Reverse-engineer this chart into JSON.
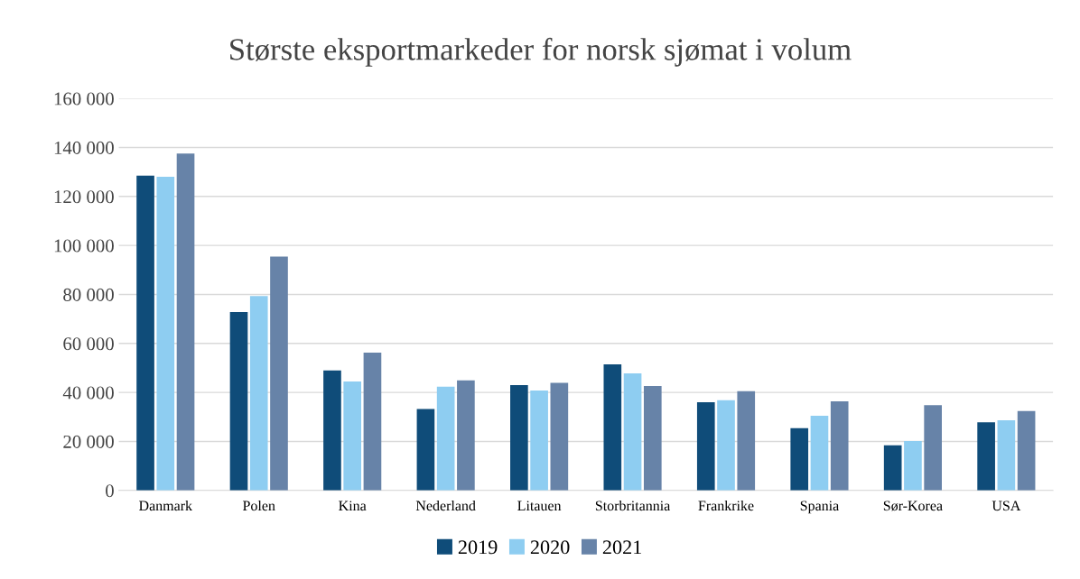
{
  "chart_data": {
    "type": "bar",
    "title": "Største eksportmarkeder for norsk sjømat i volum",
    "categories": [
      "Danmark",
      "Polen",
      "Kina",
      "Nederland",
      "Litauen",
      "Storbritannia",
      "Frankrike",
      "Spania",
      "Sør-Korea",
      "USA"
    ],
    "series": [
      {
        "name": "2019",
        "color": "#0f4c79",
        "values": [
          128500,
          72800,
          49000,
          33200,
          43000,
          51500,
          36000,
          25400,
          18400,
          27800
        ]
      },
      {
        "name": "2020",
        "color": "#8ecdf1",
        "values": [
          128000,
          79300,
          44500,
          42300,
          40800,
          47800,
          36800,
          30500,
          20200,
          28600
        ]
      },
      {
        "name": "2021",
        "color": "#6783a8",
        "values": [
          137500,
          95400,
          56200,
          44900,
          43900,
          42600,
          40500,
          36400,
          34800,
          32400
        ]
      }
    ],
    "ylim": [
      0,
      160000
    ],
    "yticks": [
      {
        "value": 0,
        "label": "0"
      },
      {
        "value": 20000,
        "label": "20 000"
      },
      {
        "value": 40000,
        "label": "40 000"
      },
      {
        "value": 60000,
        "label": "60 000"
      },
      {
        "value": 80000,
        "label": "80 000"
      },
      {
        "value": 100000,
        "label": "100 000"
      },
      {
        "value": 120000,
        "label": "120 000"
      },
      {
        "value": 140000,
        "label": "140 000"
      },
      {
        "value": 160000,
        "label": "160 000"
      }
    ],
    "grid": "y",
    "legend": "bottom"
  }
}
